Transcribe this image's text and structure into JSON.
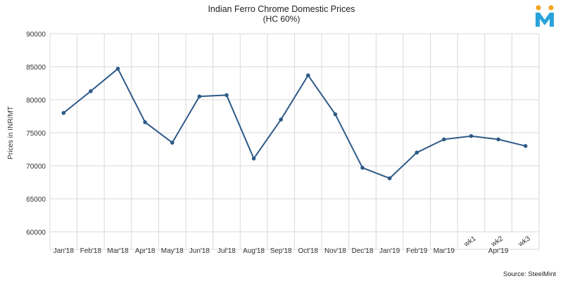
{
  "chart_data": {
    "type": "line",
    "title": "Indian Ferro Chrome Domestic Prices",
    "subtitle": "(HC 60%)",
    "xlabel": "",
    "ylabel": "Prices in INR/MT",
    "source": "Source: SteelMint",
    "categories": [
      "Jan'18",
      "Feb'18",
      "Mar'18",
      "Apr'18",
      "May'18",
      "Jun'18",
      "Jul'18",
      "Aug'18",
      "Sep'18",
      "Oct'18",
      "Nov'18",
      "Dec'18",
      "Jan'19",
      "Feb'19",
      "Mar'19",
      "wk1",
      "wk2",
      "wk3"
    ],
    "group_label": {
      "text": "Apr'19",
      "covers": [
        "wk1",
        "wk2",
        "wk3"
      ]
    },
    "series": [
      {
        "values": [
          78000,
          81300,
          84700,
          76600,
          73500,
          80500,
          80700,
          71100,
          77000,
          83700,
          77800,
          69700,
          68100,
          72000,
          74000,
          74500,
          74000,
          73000
        ],
        "color": "#2E5A88"
      }
    ],
    "ylim": [
      60000,
      90000
    ],
    "yticks": [
      60000,
      65000,
      70000,
      75000,
      80000,
      85000,
      90000
    ],
    "grid": true,
    "legend": "none"
  },
  "logo": {
    "name": "steelmint-logo",
    "letter": "M",
    "colors": {
      "primary": "#29A3DA",
      "accent": "#F5A623"
    }
  }
}
